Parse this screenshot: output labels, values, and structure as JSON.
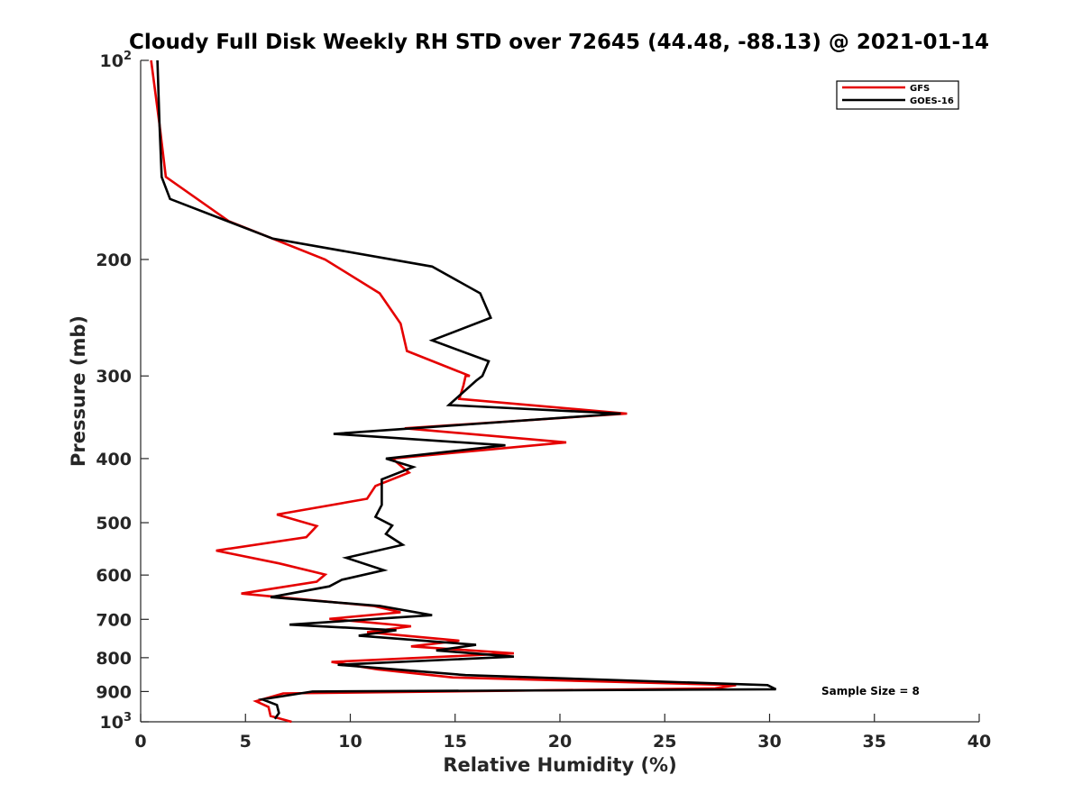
{
  "chart_data": {
    "type": "line",
    "title": "Cloudy Full Disk Weekly RH STD over 72645 (44.48, -88.13) @ 2021-01-14",
    "xlabel": "Relative Humidity (%)",
    "ylabel": "Pressure (mb)",
    "xlim": [
      0,
      40
    ],
    "ylim": [
      100,
      1000
    ],
    "yscale": "log",
    "yreversed": true,
    "grid": false,
    "xticks": [
      "0",
      "5",
      "10",
      "15",
      "20",
      "25",
      "30",
      "35",
      "40"
    ],
    "yticks": [
      {
        "value": 100,
        "base": "10",
        "exp": "2"
      },
      {
        "value": 200,
        "label": "200"
      },
      {
        "value": 300,
        "label": "300"
      },
      {
        "value": 400,
        "label": "400"
      },
      {
        "value": 500,
        "label": "500"
      },
      {
        "value": 600,
        "label": "600"
      },
      {
        "value": 700,
        "label": "700"
      },
      {
        "value": 800,
        "label": "800"
      },
      {
        "value": 900,
        "label": "900"
      },
      {
        "value": 1000,
        "base": "10",
        "exp": "3"
      }
    ],
    "legend": {
      "position": "top-right",
      "entries": [
        "GFS",
        "GOES-16"
      ]
    },
    "annotation": "Sample Size = 8",
    "series": [
      {
        "name": "GFS",
        "color": "#e50000",
        "points": [
          [
            0.5,
            100
          ],
          [
            0.9,
            125
          ],
          [
            1.2,
            150
          ],
          [
            4.2,
            175
          ],
          [
            8.8,
            200
          ],
          [
            11.4,
            225
          ],
          [
            12.4,
            250
          ],
          [
            12.7,
            275
          ],
          [
            15.7,
            300
          ],
          [
            15.5,
            300
          ],
          [
            15.4,
            310
          ],
          [
            15.2,
            325
          ],
          [
            23.2,
            342
          ],
          [
            12.6,
            360
          ],
          [
            20.3,
            378
          ],
          [
            12.0,
            400
          ],
          [
            12.8,
            420
          ],
          [
            11.2,
            440
          ],
          [
            10.8,
            460
          ],
          [
            6.5,
            486
          ],
          [
            8.4,
            506
          ],
          [
            7.9,
            526
          ],
          [
            3.6,
            551
          ],
          [
            6.6,
            576
          ],
          [
            8.8,
            599
          ],
          [
            8.4,
            614
          ],
          [
            4.8,
            640
          ],
          [
            11.1,
            668
          ],
          [
            12.4,
            683
          ],
          [
            9.0,
            699
          ],
          [
            12.9,
            717
          ],
          [
            10.8,
            732
          ],
          [
            15.2,
            754
          ],
          [
            12.9,
            769
          ],
          [
            17.8,
            788
          ],
          [
            9.1,
            812
          ],
          [
            11.3,
            833
          ],
          [
            14.9,
            857
          ],
          [
            28.4,
            880
          ],
          [
            27.4,
            890
          ],
          [
            6.8,
            906
          ],
          [
            5.5,
            931
          ],
          [
            6.1,
            950
          ],
          [
            6.2,
            980
          ],
          [
            7.2,
            1000
          ]
        ]
      },
      {
        "name": "GOES-16",
        "color": "#000000",
        "points": [
          [
            0.8,
            100
          ],
          [
            0.9,
            125
          ],
          [
            1.0,
            150
          ],
          [
            1.4,
            162
          ],
          [
            6.3,
            186
          ],
          [
            13.9,
            205
          ],
          [
            16.2,
            225
          ],
          [
            16.7,
            245
          ],
          [
            13.9,
            265
          ],
          [
            16.6,
            285
          ],
          [
            16.3,
            300
          ],
          [
            16.0,
            305
          ],
          [
            14.7,
            332
          ],
          [
            22.9,
            342
          ],
          [
            9.2,
            367
          ],
          [
            17.4,
            382
          ],
          [
            11.7,
            400
          ],
          [
            13.0,
            412
          ],
          [
            11.5,
            430
          ],
          [
            11.5,
            470
          ],
          [
            11.2,
            490
          ],
          [
            12.0,
            505
          ],
          [
            11.7,
            520
          ],
          [
            12.5,
            540
          ],
          [
            9.8,
            565
          ],
          [
            11.6,
            590
          ],
          [
            9.6,
            610
          ],
          [
            9.0,
            624
          ],
          [
            6.2,
            648
          ],
          [
            11.4,
            668
          ],
          [
            13.9,
            690
          ],
          [
            7.1,
            713
          ],
          [
            12.2,
            727
          ],
          [
            10.4,
            741
          ],
          [
            16.0,
            765
          ],
          [
            14.1,
            780
          ],
          [
            17.8,
            797
          ],
          [
            9.4,
            820
          ],
          [
            15.5,
            850
          ],
          [
            29.9,
            880
          ],
          [
            30.3,
            893
          ],
          [
            8.2,
            900
          ],
          [
            5.8,
            925
          ],
          [
            6.5,
            943
          ],
          [
            6.6,
            970
          ],
          [
            6.4,
            990
          ]
        ]
      }
    ]
  }
}
